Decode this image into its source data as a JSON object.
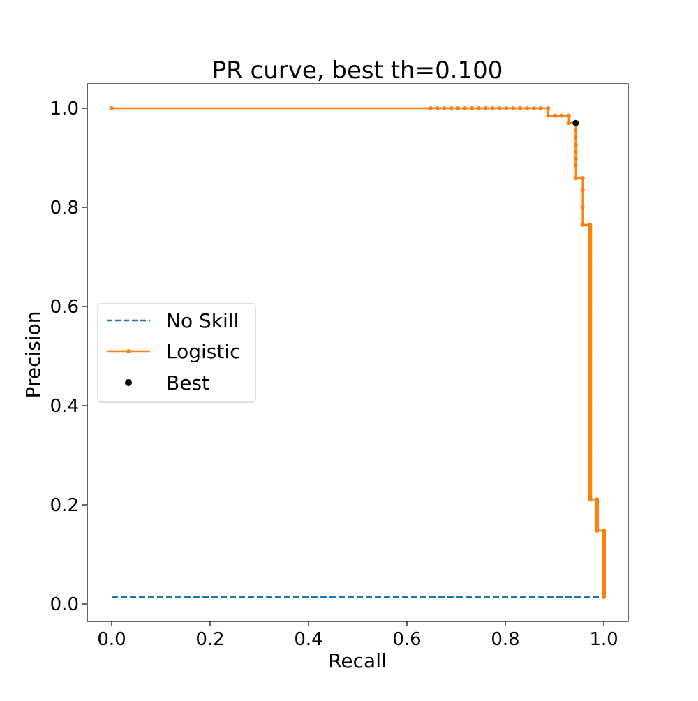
{
  "chart_data": {
    "type": "line",
    "title": "PR curve, best th=0.100",
    "xlabel": "Recall",
    "ylabel": "Precision",
    "xlim": [
      -0.05,
      1.05
    ],
    "ylim": [
      -0.035,
      1.05
    ],
    "xticks": [
      "0.0",
      "0.2",
      "0.4",
      "0.6",
      "0.8",
      "1.0"
    ],
    "yticks": [
      "0.0",
      "0.2",
      "0.4",
      "0.6",
      "0.8",
      "1.0"
    ],
    "grid": false,
    "legend_position": "center left",
    "legend": [
      {
        "label": "No Skill",
        "style": "dashed",
        "color": "#1f77b4"
      },
      {
        "label": "Logistic",
        "style": "solid-marker",
        "color": "#ff7f0e"
      },
      {
        "label": "Best",
        "style": "scatter",
        "color": "#000000"
      }
    ],
    "series": [
      {
        "name": "No Skill",
        "color": "#1f77b4",
        "x": [
          0.0,
          1.0
        ],
        "y": [
          0.014,
          0.014
        ]
      },
      {
        "name": "Logistic",
        "color": "#ff7f0e",
        "x": [
          0.0,
          0.648,
          0.662,
          0.676,
          0.69,
          0.704,
          0.718,
          0.732,
          0.746,
          0.76,
          0.774,
          0.788,
          0.802,
          0.816,
          0.83,
          0.844,
          0.858,
          0.872,
          0.887,
          0.887,
          0.901,
          0.915,
          0.929,
          0.929,
          0.943,
          0.943,
          0.943,
          0.943,
          0.943,
          0.943,
          0.943,
          0.943,
          0.957,
          0.957,
          0.957,
          0.957,
          0.972,
          0.972,
          0.972,
          0.972,
          0.972,
          0.972,
          0.972,
          0.986,
          0.986,
          1.0,
          1.0,
          1.0
        ],
        "y": [
          1.0,
          1.0,
          1.0,
          1.0,
          1.0,
          1.0,
          1.0,
          1.0,
          1.0,
          1.0,
          1.0,
          1.0,
          1.0,
          1.0,
          1.0,
          1.0,
          1.0,
          1.0,
          1.0,
          0.985,
          0.985,
          0.985,
          0.985,
          0.97,
          0.97,
          0.955,
          0.941,
          0.926,
          0.912,
          0.898,
          0.885,
          0.859,
          0.859,
          0.835,
          0.8,
          0.765,
          0.765,
          0.7,
          0.6,
          0.5,
          0.4,
          0.3,
          0.211,
          0.211,
          0.148,
          0.148,
          0.08,
          0.014
        ]
      }
    ],
    "best_point": {
      "label": "Best",
      "recall": 0.943,
      "precision": 0.97,
      "threshold": 0.1
    }
  }
}
